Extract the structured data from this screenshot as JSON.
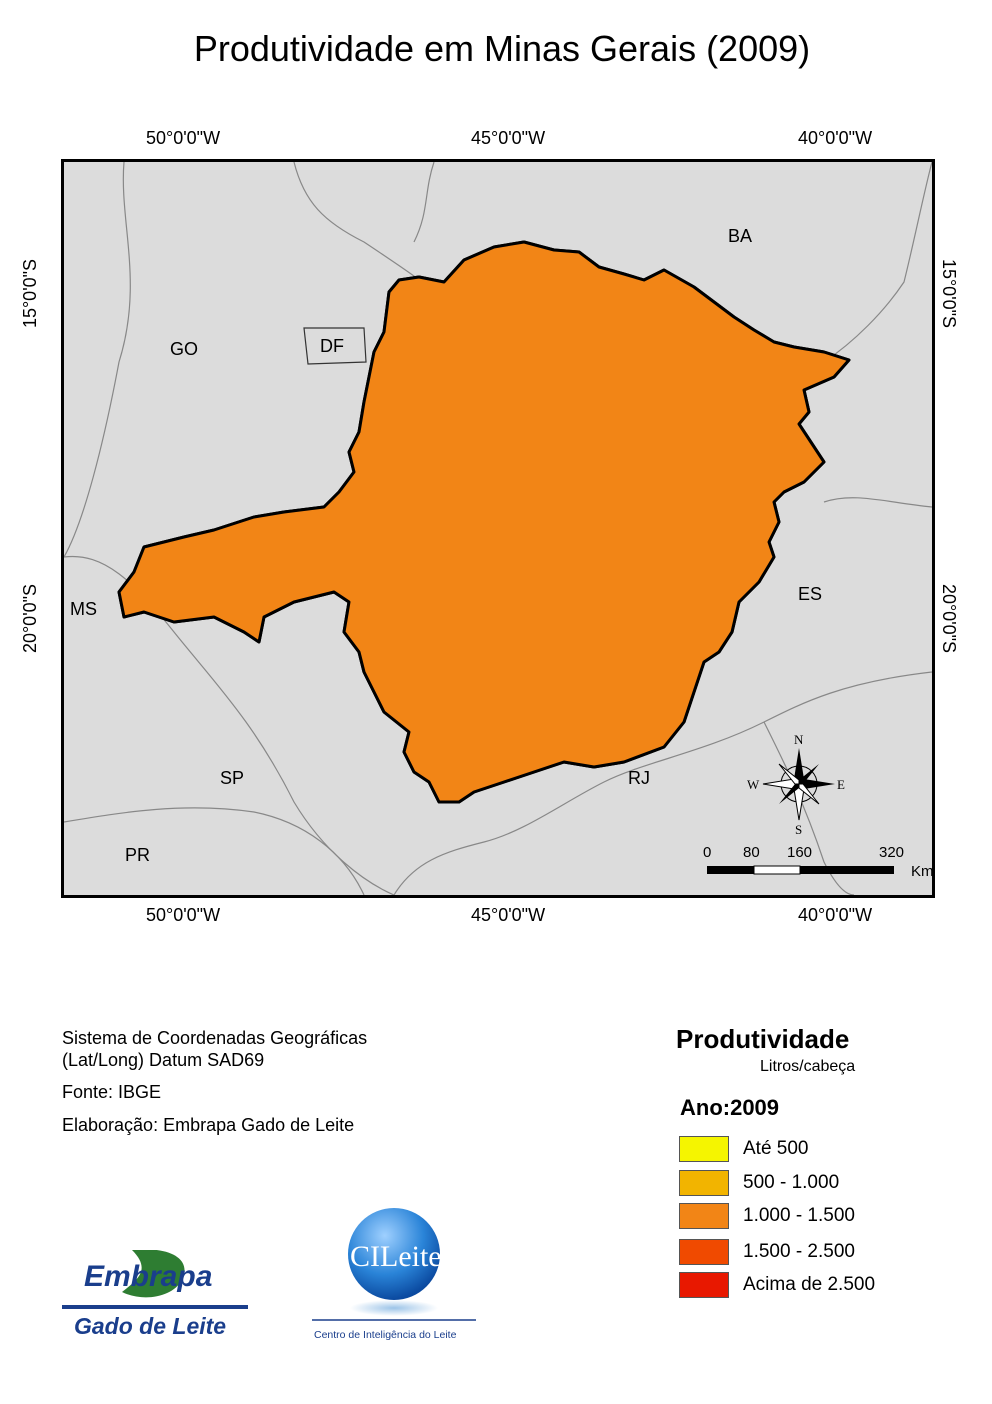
{
  "title": "Produtividade em Minas Gerais (2009)",
  "axes": {
    "top_ticks": [
      "50°0'0\"W",
      "45°0'0\"W",
      "40°0'0\"W"
    ],
    "bottom_ticks": [
      "50°0'0\"W",
      "45°0'0\"W",
      "40°0'0\"W"
    ],
    "left_ticks": [
      "15°0'0\"S",
      "20°0'0\"S"
    ],
    "right_ticks": [
      "15°0'0\"S",
      "20°0'0\"S"
    ]
  },
  "states": [
    "BA",
    "GO",
    "DF",
    "MS",
    "ES",
    "SP",
    "RJ",
    "PR"
  ],
  "compass": {
    "n": "N",
    "s": "S",
    "e": "E",
    "w": "W"
  },
  "scale_bar": {
    "labels": [
      "0",
      "80",
      "160",
      "320"
    ],
    "unit": "Km"
  },
  "info": {
    "line1": "Sistema de Coordenadas Geográficas",
    "line2": "(Lat/Long) Datum SAD69",
    "source": "Fonte: IBGE",
    "author": "Elaboração: Embrapa Gado de Leite"
  },
  "legend": {
    "title": "Produtividade",
    "subtitle": "Litros/cabeça",
    "year": "Ano:2009",
    "classes": [
      {
        "label": "Até 500",
        "color": "#f5f500"
      },
      {
        "label": "500 - 1.000",
        "color": "#f2b400"
      },
      {
        "label": "1.000 - 1.500",
        "color": "#f28516"
      },
      {
        "label": "1.500 - 2.500",
        "color": "#f04a00"
      },
      {
        "label": "Acima de 2.500",
        "color": "#e81800"
      }
    ]
  },
  "logos": {
    "embrapa_name": "Embrapa",
    "embrapa_sub": "Gado de Leite",
    "cileite_name": "CILeite",
    "cileite_sub": "Centro de Inteligência do Leite"
  }
}
